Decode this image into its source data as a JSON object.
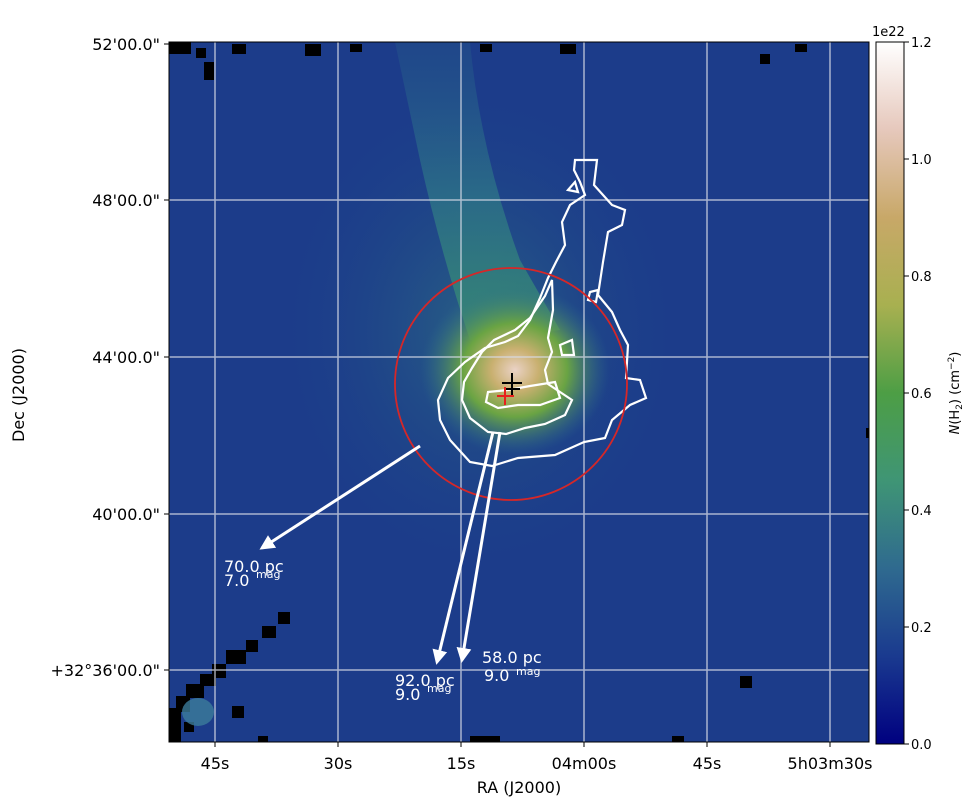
{
  "chart_data": {
    "type": "heatmap",
    "xlabel": "RA (J2000)",
    "ylabel": "Dec (J2000)",
    "x_ticks": [
      "45s",
      "30s",
      "15s",
      "04m00s",
      "45s",
      "5h03m30s"
    ],
    "y_ticks": [
      "52'00.0\"",
      "48'00.0\"",
      "44'00.0\"",
      "40'00.0\"",
      "+32°36'00.0\""
    ],
    "grid": true,
    "colormap": "gist_earth",
    "colorbar": {
      "label": "N(H₂) (cm⁻²)",
      "label_prefix": "N",
      "label_suffix": "(H",
      "label_sub": "2",
      "label_unit": ") (cm",
      "label_sup": "−2",
      "label_end": ")",
      "offset_text": "1e22",
      "ticks": [
        "0.0",
        "0.2",
        "0.4",
        "0.6",
        "0.8",
        "1.0",
        "1.2"
      ],
      "vmin": 0.0,
      "vmax": 1.2,
      "colors": [
        "#000080",
        "#1a3a8f",
        "#2f6a8f",
        "#3f9575",
        "#4d9e45",
        "#a8b050",
        "#c8a868",
        "#e6c8bc",
        "#ffffff"
      ]
    },
    "annotations": [
      {
        "distance": "70.0 pc",
        "extinction": "7.0",
        "unit": "mag"
      },
      {
        "distance": "92.0 pc",
        "extinction": "9.0",
        "unit": "mag"
      },
      {
        "distance": "58.0 pc",
        "extinction": "9.0",
        "unit": "mag"
      }
    ],
    "markers": [
      {
        "name": "black-cross",
        "color": "#000000"
      },
      {
        "name": "red-cross",
        "color": "#e8201c"
      }
    ],
    "circle_color": "#d62728",
    "contour_color": "#ffffff"
  }
}
